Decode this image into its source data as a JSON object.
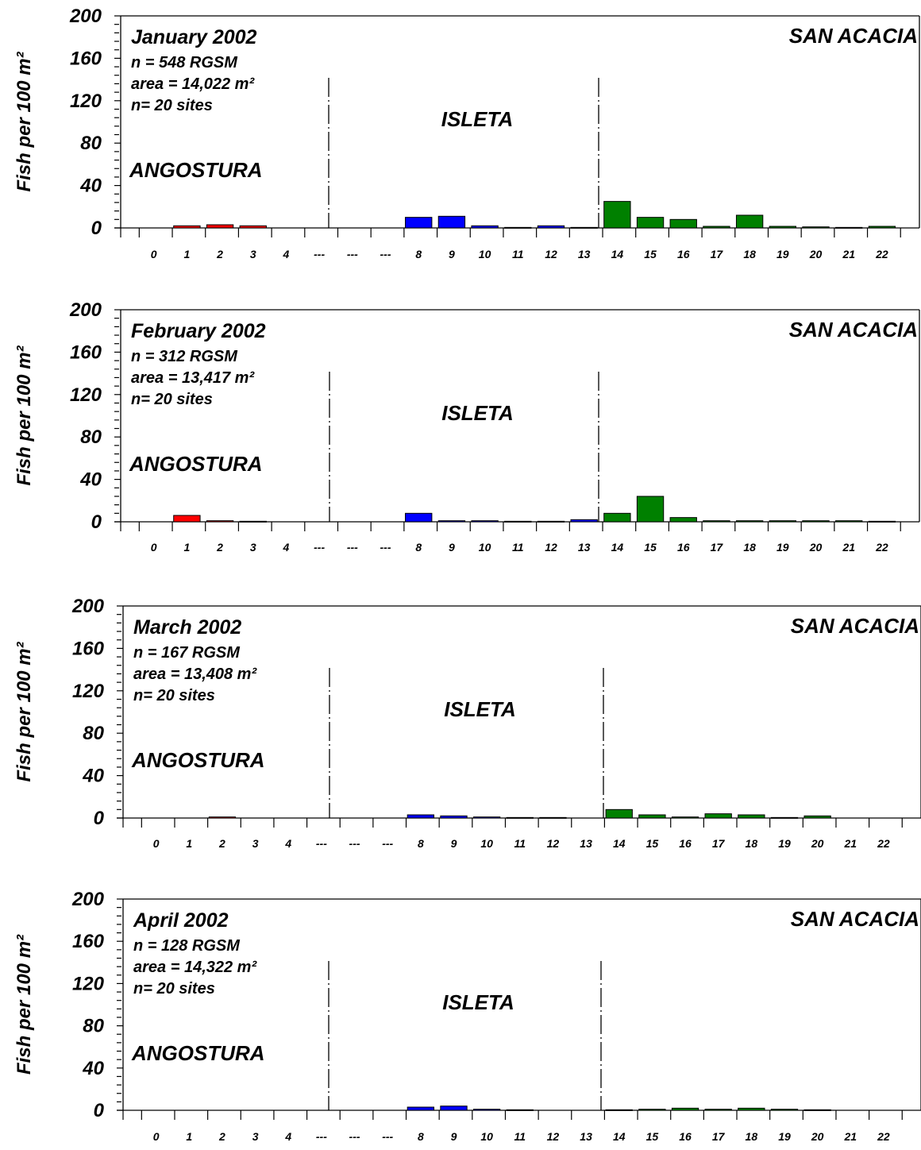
{
  "figure_colors": {
    "angostura": "#ff0000",
    "isleta": "#0000ff",
    "san_acacia": "#008000",
    "frame": "#000000",
    "bar_outline": "#000000"
  },
  "chart_data": [
    {
      "type": "bar",
      "title": "January 2002",
      "stats": [
        "n = 548 RGSM",
        "area = 14,022 m²",
        "n= 20 sites"
      ],
      "ylabel": "Fish per 100 m²",
      "ylim": [
        0,
        200
      ],
      "yticks": [
        0,
        40,
        80,
        120,
        160,
        200
      ],
      "grid": false,
      "reach_labels": [
        "ANGOSTURA",
        "ISLETA",
        "SAN ACACIA"
      ],
      "categories": [
        "0",
        "1",
        "2",
        "3",
        "4",
        "---",
        "---",
        "---",
        "8",
        "9",
        "10",
        "11",
        "12",
        "13",
        "14",
        "15",
        "16",
        "17",
        "18",
        "19",
        "20",
        "21",
        "22"
      ],
      "reach": [
        "angostura",
        "angostura",
        "angostura",
        "angostura",
        "angostura",
        "none",
        "none",
        "none",
        "isleta",
        "isleta",
        "isleta",
        "isleta",
        "isleta",
        "isleta",
        "san_acacia",
        "san_acacia",
        "san_acacia",
        "san_acacia",
        "san_acacia",
        "san_acacia",
        "san_acacia",
        "san_acacia",
        "san_acacia"
      ],
      "values": [
        0,
        2,
        3,
        2,
        0,
        0,
        0,
        0,
        10,
        11,
        2,
        0.5,
        2,
        0.5,
        25,
        10,
        8,
        1.5,
        12,
        1.5,
        1,
        0.5,
        1.5
      ]
    },
    {
      "type": "bar",
      "title": "February 2002",
      "stats": [
        "n = 312 RGSM",
        "area = 13,417 m²",
        "n= 20 sites"
      ],
      "ylabel": "Fish per 100 m²",
      "ylim": [
        0,
        200
      ],
      "yticks": [
        0,
        40,
        80,
        120,
        160,
        200
      ],
      "grid": false,
      "reach_labels": [
        "ANGOSTURA",
        "ISLETA",
        "SAN ACACIA"
      ],
      "categories": [
        "0",
        "1",
        "2",
        "3",
        "4",
        "---",
        "---",
        "---",
        "8",
        "9",
        "10",
        "11",
        "12",
        "13",
        "14",
        "15",
        "16",
        "17",
        "18",
        "19",
        "20",
        "21",
        "22"
      ],
      "reach": [
        "angostura",
        "angostura",
        "angostura",
        "angostura",
        "angostura",
        "none",
        "none",
        "none",
        "isleta",
        "isleta",
        "isleta",
        "isleta",
        "isleta",
        "isleta",
        "san_acacia",
        "san_acacia",
        "san_acacia",
        "san_acacia",
        "san_acacia",
        "san_acacia",
        "san_acacia",
        "san_acacia",
        "san_acacia"
      ],
      "values": [
        0,
        6,
        1,
        0.5,
        0,
        0,
        0,
        0,
        8,
        1,
        1,
        0.5,
        0.5,
        2,
        8,
        24,
        4,
        1,
        1,
        1,
        1,
        1,
        0.5
      ]
    },
    {
      "type": "bar",
      "title": "March 2002",
      "stats": [
        "n = 167 RGSM",
        "area = 13,408 m²",
        "n= 20 sites"
      ],
      "ylabel": "Fish per 100 m²",
      "ylim": [
        0,
        200
      ],
      "yticks": [
        0,
        40,
        80,
        120,
        160,
        200
      ],
      "grid": false,
      "reach_labels": [
        "ANGOSTURA",
        "ISLETA",
        "SAN ACACIA"
      ],
      "categories": [
        "0",
        "1",
        "2",
        "3",
        "4",
        "---",
        "---",
        "---",
        "8",
        "9",
        "10",
        "11",
        "12",
        "13",
        "14",
        "15",
        "16",
        "17",
        "18",
        "19",
        "20",
        "21",
        "22"
      ],
      "reach": [
        "angostura",
        "angostura",
        "angostura",
        "angostura",
        "angostura",
        "none",
        "none",
        "none",
        "isleta",
        "isleta",
        "isleta",
        "isleta",
        "isleta",
        "isleta",
        "san_acacia",
        "san_acacia",
        "san_acacia",
        "san_acacia",
        "san_acacia",
        "san_acacia",
        "san_acacia",
        "san_acacia",
        "san_acacia"
      ],
      "values": [
        0,
        0,
        1,
        0,
        0,
        0,
        0,
        0,
        3,
        2,
        1,
        0.5,
        0.5,
        0,
        8,
        3,
        1,
        4,
        3,
        0.5,
        2,
        0,
        0
      ]
    },
    {
      "type": "bar",
      "title": "April 2002",
      "stats": [
        "n = 128 RGSM",
        "area = 14,322 m²",
        "n= 20 sites"
      ],
      "ylabel": "Fish per 100 m²",
      "ylim": [
        0,
        200
      ],
      "yticks": [
        0,
        40,
        80,
        120,
        160,
        200
      ],
      "grid": false,
      "reach_labels": [
        "ANGOSTURA",
        "ISLETA",
        "SAN ACACIA"
      ],
      "categories": [
        "0",
        "1",
        "2",
        "3",
        "4",
        "---",
        "---",
        "---",
        "8",
        "9",
        "10",
        "11",
        "12",
        "13",
        "14",
        "15",
        "16",
        "17",
        "18",
        "19",
        "20",
        "21",
        "22"
      ],
      "reach": [
        "angostura",
        "angostura",
        "angostura",
        "angostura",
        "angostura",
        "none",
        "none",
        "none",
        "isleta",
        "isleta",
        "isleta",
        "isleta",
        "isleta",
        "isleta",
        "san_acacia",
        "san_acacia",
        "san_acacia",
        "san_acacia",
        "san_acacia",
        "san_acacia",
        "san_acacia",
        "san_acacia",
        "san_acacia"
      ],
      "values": [
        0,
        0,
        0,
        0,
        0,
        0,
        0,
        0,
        3,
        4,
        1,
        0.5,
        0,
        0,
        0.5,
        1,
        2,
        1,
        2,
        1,
        0.5,
        0,
        0
      ]
    }
  ]
}
